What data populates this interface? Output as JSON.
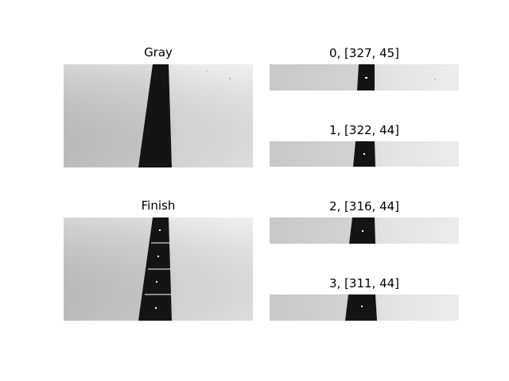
{
  "figure": {
    "panels": {
      "gray": {
        "title": "Gray"
      },
      "finish": {
        "title": "Finish"
      },
      "slices": [
        {
          "title": "0, [327, 45]"
        },
        {
          "title": "1, [322, 44]"
        },
        {
          "title": "2, [316, 44]"
        },
        {
          "title": "3, [311, 44]"
        }
      ]
    },
    "colors": {
      "background": "#ffffff",
      "ground_left": "#c4c4c4",
      "ground_right": "#e9e9e9",
      "tape": "#141414",
      "marker": "#ffffff"
    }
  }
}
